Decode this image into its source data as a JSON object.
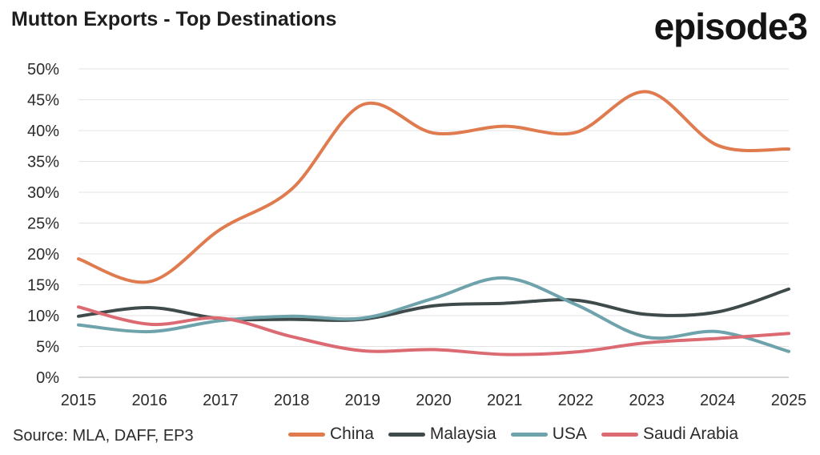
{
  "header": {
    "title": "Mutton Exports - Top Destinations",
    "logo_text": "episode3"
  },
  "footer": {
    "source": "Source: MLA, DAFF, EP3"
  },
  "chart_data": {
    "type": "line",
    "title": "Mutton Exports - Top Destinations",
    "xlabel": "",
    "ylabel": "",
    "x": [
      "2015",
      "2016",
      "2017",
      "2018",
      "2019",
      "2020",
      "2021",
      "2022",
      "2023",
      "2024",
      "2025"
    ],
    "y_ticks": [
      "0%",
      "5%",
      "10%",
      "15%",
      "20%",
      "25%",
      "30%",
      "35%",
      "40%",
      "45%",
      "50%"
    ],
    "ylim": [
      0,
      50
    ],
    "grid": "horizontal",
    "legend_position": "bottom",
    "series": [
      {
        "name": "China",
        "color": "#e07b4f",
        "values": [
          19.2,
          15.5,
          24.0,
          30.5,
          44.2,
          39.6,
          40.7,
          39.7,
          46.3,
          37.6,
          37.0
        ]
      },
      {
        "name": "Malaysia",
        "color": "#3f4a4a",
        "values": [
          9.9,
          11.3,
          9.5,
          9.4,
          9.4,
          11.6,
          12.0,
          12.5,
          10.2,
          10.6,
          14.3
        ]
      },
      {
        "name": "USA",
        "color": "#6ea3ab",
        "values": [
          8.5,
          7.4,
          9.2,
          9.9,
          9.6,
          12.8,
          16.1,
          11.8,
          6.5,
          7.4,
          4.2
        ]
      },
      {
        "name": "Saudi Arabia",
        "color": "#dc6a72",
        "values": [
          11.4,
          8.6,
          9.6,
          6.6,
          4.3,
          4.5,
          3.7,
          4.1,
          5.6,
          6.3,
          7.1
        ]
      }
    ]
  }
}
